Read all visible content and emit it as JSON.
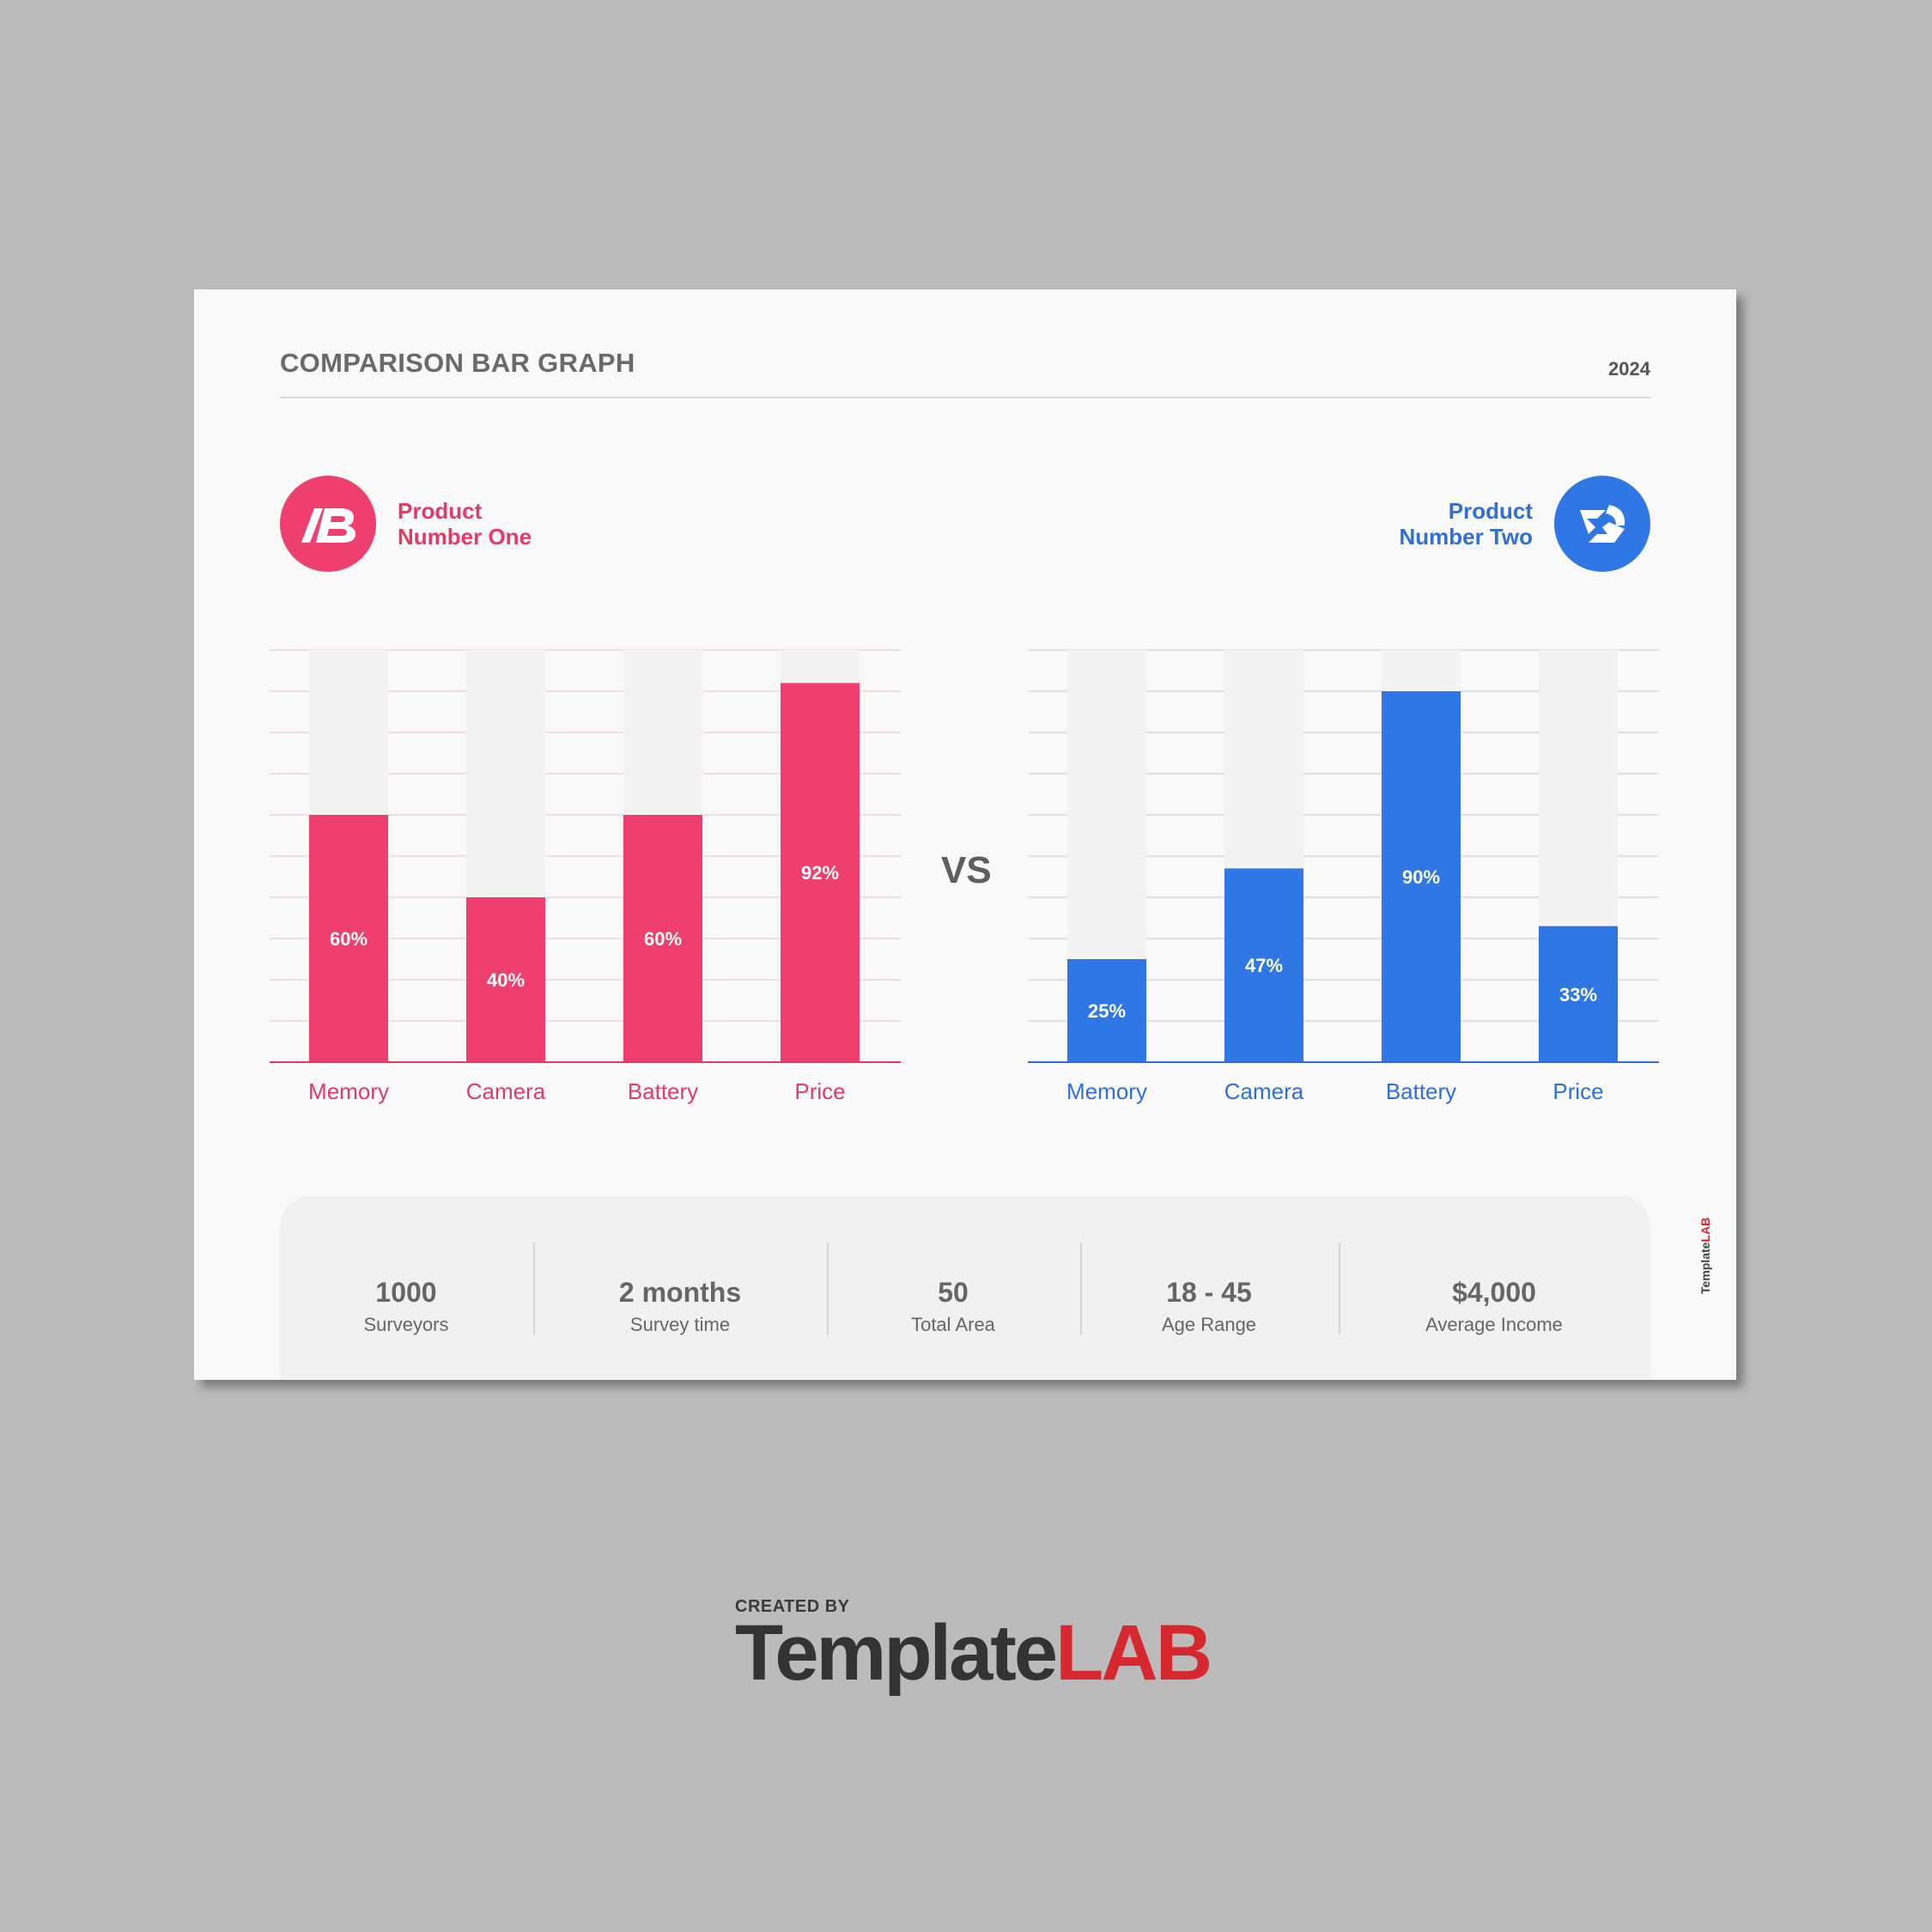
{
  "header": {
    "title": "COMPARISON BAR GRAPH",
    "year": "2024"
  },
  "products": [
    {
      "name_line1": "Product",
      "name_line2": "Number One",
      "color": "#ee3f6e",
      "label_color": "#e53a68",
      "logo_icon": "ab-monogram-logo"
    },
    {
      "name_line1": "Product",
      "name_line2": "Number Two",
      "color": "#2f77e4",
      "label_color": "#2f6fd8",
      "logo_icon": "swirl-s-logo"
    }
  ],
  "vs_label": "VS",
  "chart_data": [
    {
      "type": "bar",
      "title": "",
      "series_name": "Product Number One",
      "categories": [
        "Memory",
        "Camera",
        "Battery",
        "Price"
      ],
      "values": [
        60,
        40,
        60,
        92
      ],
      "value_labels": [
        "60%",
        "40%",
        "60%",
        "92%"
      ],
      "ylim": [
        0,
        100
      ],
      "grid": true,
      "bar_color": "#ee3f6e",
      "track_color": "#f3f3f3",
      "grid_color": "#f5dce3",
      "axis_color": "#e03b66"
    },
    {
      "type": "bar",
      "title": "",
      "series_name": "Product Number Two",
      "categories": [
        "Memory",
        "Camera",
        "Battery",
        "Price"
      ],
      "values": [
        25,
        47,
        90,
        33
      ],
      "value_labels": [
        "25%",
        "47%",
        "90%",
        "33%"
      ],
      "ylim": [
        0,
        100
      ],
      "grid": true,
      "bar_color": "#2f77e4",
      "track_color": "#f3f3f3",
      "grid_color": "#dde3ee",
      "axis_color": "#2f6fd8"
    }
  ],
  "stats": [
    {
      "value": "1000",
      "label": "Surveyors"
    },
    {
      "value": "2 months",
      "label": "Survey time"
    },
    {
      "value": "50",
      "label": "Total Area"
    },
    {
      "value": "18 - 45",
      "label": "Age Range"
    },
    {
      "value": "$4,000",
      "label": "Average Income"
    }
  ],
  "branding": {
    "side_template": "Template",
    "side_lab": "LAB",
    "created_by": "CREATED BY",
    "brand_template": "Template",
    "brand_lab": "LAB"
  }
}
